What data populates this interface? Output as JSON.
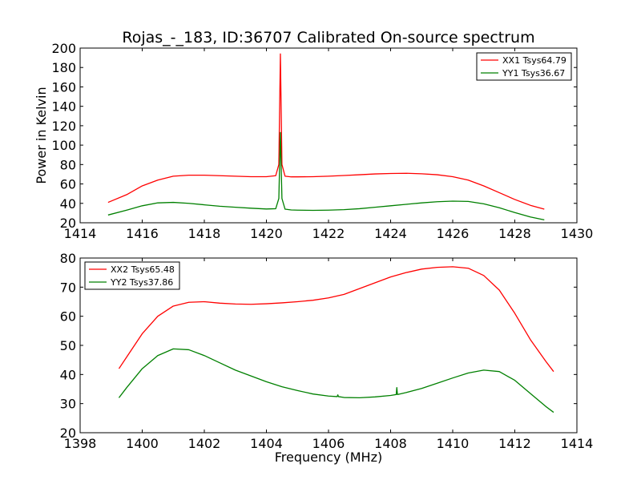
{
  "figure": {
    "title": "Rojas_-_183, ID:36707 Calibrated On-source spectrum"
  },
  "chart_data": [
    {
      "type": "line",
      "xlabel": "",
      "ylabel": "Power in Kelvin",
      "xlim": [
        1414,
        1430
      ],
      "ylim": [
        20,
        200
      ],
      "xticks": [
        "1414",
        "1416",
        "1418",
        "1420",
        "1422",
        "1424",
        "1426",
        "1428",
        "1430"
      ],
      "yticks": [
        "20",
        "40",
        "60",
        "80",
        "100",
        "120",
        "140",
        "160",
        "180",
        "200"
      ],
      "grid": false,
      "legend_position": "upper right",
      "series": [
        {
          "name": "XX1 Tsys64.79",
          "color": "#ff0000",
          "x": [
            1414.9,
            1415.5,
            1416.0,
            1416.5,
            1417.0,
            1417.5,
            1418.0,
            1418.5,
            1419.0,
            1419.5,
            1420.0,
            1420.3,
            1420.4,
            1420.45,
            1420.5,
            1420.6,
            1420.8,
            1421.0,
            1421.5,
            1422.0,
            1422.5,
            1423.0,
            1423.5,
            1424.0,
            1424.5,
            1425.0,
            1425.5,
            1426.0,
            1426.5,
            1427.0,
            1427.5,
            1428.0,
            1428.5,
            1428.95
          ],
          "y": [
            41,
            49,
            58,
            64,
            68,
            69,
            69,
            68.5,
            68,
            67.5,
            67.5,
            68.5,
            80,
            194,
            80,
            68,
            67.3,
            67.3,
            67.5,
            68,
            68.7,
            69.5,
            70.3,
            70.8,
            71,
            70.5,
            69.5,
            67.5,
            64,
            58,
            51,
            44,
            38,
            34
          ]
        },
        {
          "name": "YY1 Tsys36.67",
          "color": "#008000",
          "x": [
            1414.9,
            1415.5,
            1416.0,
            1416.5,
            1417.0,
            1417.5,
            1418.0,
            1418.5,
            1419.0,
            1419.5,
            1420.0,
            1420.3,
            1420.4,
            1420.45,
            1420.5,
            1420.6,
            1420.8,
            1421.0,
            1421.5,
            1422.0,
            1422.5,
            1423.0,
            1423.5,
            1424.0,
            1424.5,
            1425.0,
            1425.5,
            1426.0,
            1426.5,
            1427.0,
            1427.5,
            1428.0,
            1428.5,
            1428.95
          ],
          "y": [
            28,
            33,
            37.5,
            40.5,
            41,
            40,
            38.5,
            37,
            36,
            35,
            34.2,
            34.5,
            45,
            113,
            45,
            34,
            33.2,
            33,
            32.8,
            33,
            33.5,
            34.5,
            36,
            37.5,
            39,
            40.5,
            41.7,
            42.3,
            42,
            39.5,
            35.5,
            30.5,
            26,
            23
          ]
        }
      ]
    },
    {
      "type": "line",
      "xlabel": "Frequency (MHz)",
      "ylabel": "",
      "xlim": [
        1398,
        1414
      ],
      "ylim": [
        20,
        80
      ],
      "xticks": [
        "1398",
        "1400",
        "1402",
        "1404",
        "1406",
        "1408",
        "1410",
        "1412",
        "1414"
      ],
      "yticks": [
        "20",
        "30",
        "40",
        "50",
        "60",
        "70",
        "80"
      ],
      "grid": false,
      "legend_position": "upper left",
      "series": [
        {
          "name": "XX2 Tsys65.48",
          "color": "#ff0000",
          "x": [
            1399.25,
            1399.5,
            1400.0,
            1400.5,
            1401.0,
            1401.5,
            1402.0,
            1402.5,
            1403.0,
            1403.5,
            1404.0,
            1404.5,
            1405.0,
            1405.5,
            1406.0,
            1406.5,
            1407.0,
            1407.5,
            1408.0,
            1408.5,
            1409.0,
            1409.5,
            1410.0,
            1410.5,
            1411.0,
            1411.5,
            1412.0,
            1412.5,
            1413.0,
            1413.25
          ],
          "y": [
            42,
            46,
            54,
            60,
            63.5,
            64.8,
            65,
            64.5,
            64.2,
            64.1,
            64.3,
            64.6,
            65,
            65.5,
            66.3,
            67.5,
            69.5,
            71.5,
            73.5,
            75,
            76.2,
            76.8,
            77,
            76.5,
            74,
            69,
            61,
            52,
            44.5,
            41
          ]
        },
        {
          "name": "YY2 Tsys37.86",
          "color": "#008000",
          "x": [
            1399.25,
            1399.5,
            1400.0,
            1400.5,
            1401.0,
            1401.5,
            1402.0,
            1402.5,
            1403.0,
            1403.5,
            1404.0,
            1404.5,
            1405.0,
            1405.5,
            1406.0,
            1406.28,
            1406.3,
            1406.32,
            1406.5,
            1407.0,
            1407.5,
            1408.0,
            1408.18,
            1408.2,
            1408.22,
            1408.5,
            1409.0,
            1409.5,
            1410.0,
            1410.5,
            1411.0,
            1411.5,
            1412.0,
            1412.5,
            1413.0,
            1413.25
          ],
          "y": [
            32,
            35.5,
            42,
            46.5,
            48.8,
            48.5,
            46.5,
            44,
            41.5,
            39.5,
            37.5,
            35.8,
            34.5,
            33.3,
            32.6,
            32.4,
            33,
            32.4,
            32.1,
            32,
            32.3,
            32.8,
            33.1,
            35.5,
            33.1,
            33.8,
            35.2,
            37,
            38.8,
            40.5,
            41.5,
            41,
            38,
            33.5,
            29,
            27
          ]
        }
      ]
    }
  ]
}
